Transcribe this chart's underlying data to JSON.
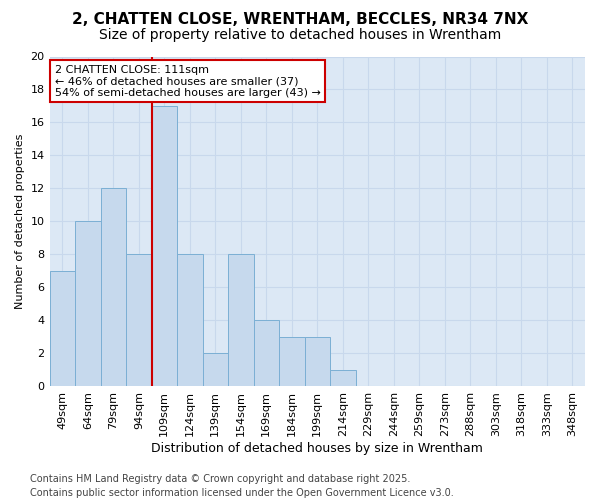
{
  "title_line1": "2, CHATTEN CLOSE, WRENTHAM, BECCLES, NR34 7NX",
  "title_line2": "Size of property relative to detached houses in Wrentham",
  "xlabel": "Distribution of detached houses by size in Wrentham",
  "ylabel": "Number of detached properties",
  "categories": [
    "49sqm",
    "64sqm",
    "79sqm",
    "94sqm",
    "109sqm",
    "124sqm",
    "139sqm",
    "154sqm",
    "169sqm",
    "184sqm",
    "199sqm",
    "214sqm",
    "229sqm",
    "244sqm",
    "259sqm",
    "273sqm",
    "288sqm",
    "303sqm",
    "318sqm",
    "333sqm",
    "348sqm"
  ],
  "values": [
    7,
    10,
    12,
    8,
    17,
    8,
    2,
    8,
    4,
    3,
    3,
    1,
    0,
    0,
    0,
    0,
    0,
    0,
    0,
    0,
    0
  ],
  "highlight_index": 4,
  "bar_color": "#c6d9ed",
  "bar_edge_color": "#7bafd4",
  "highlight_line_color": "#cc0000",
  "annotation_line1": "2 CHATTEN CLOSE: 111sqm",
  "annotation_line2": "← 46% of detached houses are smaller (37)",
  "annotation_line3": "54% of semi-detached houses are larger (43) →",
  "annotation_box_color": "#ffffff",
  "annotation_box_edge": "#cc0000",
  "ylim": [
    0,
    20
  ],
  "yticks": [
    0,
    2,
    4,
    6,
    8,
    10,
    12,
    14,
    16,
    18,
    20
  ],
  "grid_color": "#c8d8ec",
  "background_color": "#dce8f5",
  "fig_background": "#ffffff",
  "footer_line1": "Contains HM Land Registry data © Crown copyright and database right 2025.",
  "footer_line2": "Contains public sector information licensed under the Open Government Licence v3.0.",
  "title1_fontsize": 11,
  "title2_fontsize": 10,
  "xlabel_fontsize": 9,
  "ylabel_fontsize": 8,
  "tick_fontsize": 8,
  "footer_fontsize": 7,
  "annot_fontsize": 8
}
